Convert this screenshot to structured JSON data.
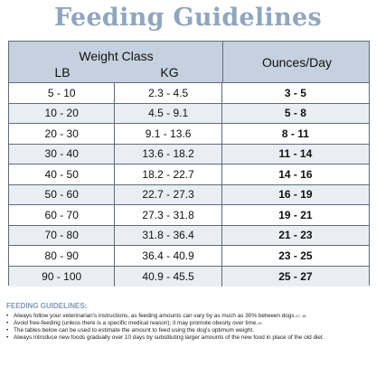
{
  "title": "Feeding Guidelines",
  "table": {
    "header": {
      "weight_class": "Weight Class",
      "lb": "LB",
      "kg": "KG",
      "ounces": "Ounces/Day"
    },
    "rows": [
      {
        "lb": "5 - 10",
        "kg": "2.3 - 4.5",
        "oz": "3 - 5"
      },
      {
        "lb": "10 - 20",
        "kg": "4.5 - 9.1",
        "oz": "5 - 8"
      },
      {
        "lb": "20 - 30",
        "kg": "9.1 - 13.6",
        "oz": "8 - 11"
      },
      {
        "lb": "30 - 40",
        "kg": "13.6 - 18.2",
        "oz": "11 - 14"
      },
      {
        "lb": "40 - 50",
        "kg": "18.2 - 22.7",
        "oz": "14 - 16"
      },
      {
        "lb": "50 - 60",
        "kg": "22.7 - 27.3",
        "oz": "16 - 19"
      },
      {
        "lb": "60 - 70",
        "kg": "27.3 - 31.8",
        "oz": "19 - 21"
      },
      {
        "lb": "70 - 80",
        "kg": "31.8 - 36.4",
        "oz": "21 - 23"
      },
      {
        "lb": "80 - 90",
        "kg": "36.4 - 40.9",
        "oz": "23 - 25"
      },
      {
        "lb": "90 - 100",
        "kg": "40.9 - 45.5",
        "oz": "25 - 27"
      }
    ]
  },
  "notes": {
    "title": "FEEDING GUIDELINES:",
    "items": [
      {
        "text": "Always follow your veterinarian's instructions, as feeding amounts can vary by as much as 30% between dogs.",
        "sup": "17, 18"
      },
      {
        "text": "Avoid free-feeding (unless there is a specific medical reason); it may promote obesity over time.",
        "sup": "19"
      },
      {
        "text": "The tables below can be used to estimate the amount to feed using the dog's optimum weight.",
        "sup": ""
      },
      {
        "text": "Always introduce new foods gradually over 10 days by substituting larger amounts of the new food in place of the old diet.",
        "sup": ""
      }
    ]
  }
}
